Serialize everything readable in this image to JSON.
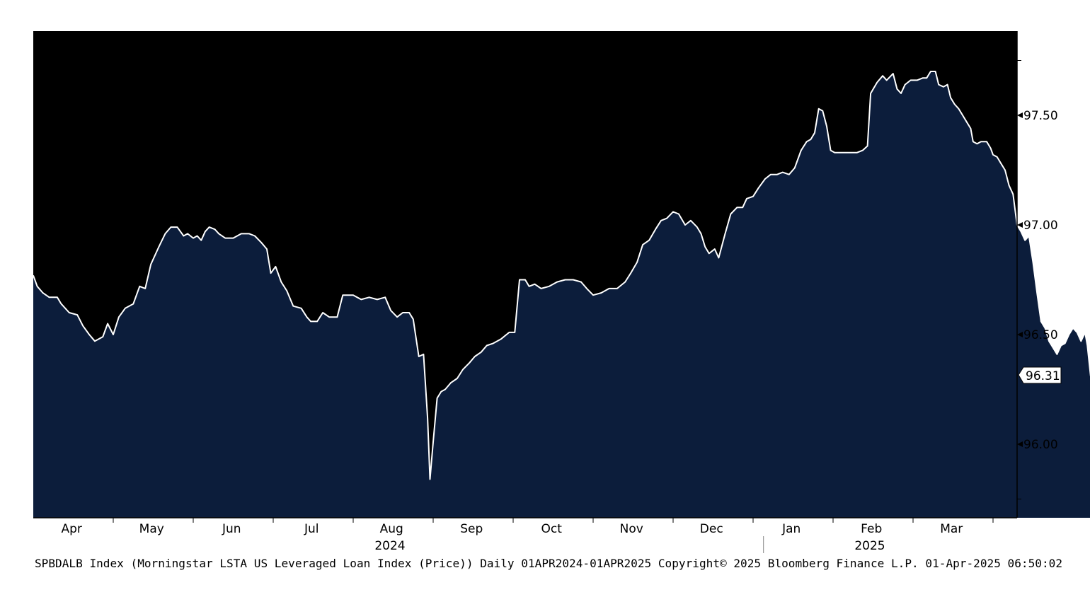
{
  "chart_data": {
    "type": "area",
    "title": "",
    "xlabel": "",
    "ylabel": "",
    "ylim": [
      95.73,
      97.9
    ],
    "grid": false,
    "legend": "none",
    "colors": {
      "fill": "#0c1d3b",
      "line": "#ffffff",
      "background": "#000000"
    },
    "y_ticks": [
      "96.00",
      "96.50",
      "97.00",
      "97.50"
    ],
    "y_tick_values": [
      96.0,
      96.5,
      97.0,
      97.5
    ],
    "x_month_labels": [
      "Apr",
      "May",
      "Jun",
      "Jul",
      "Aug",
      "Sep",
      "Oct",
      "Nov",
      "Dec",
      "Jan",
      "Feb",
      "Mar"
    ],
    "x_year_labels": [
      {
        "label": "2024",
        "under_month": 4.5
      },
      {
        "label": "2025",
        "under_month": 10.5
      }
    ],
    "last_value_label": "96.31",
    "footer": "SPBDALB Index (Morningstar LSTA US Leveraged Loan Index (Price))  Daily 01APR2024-01APR2025 Copyright© 2025 Bloomberg Finance L.P. 01-Apr-2025 06:50:02",
    "series": [
      {
        "x_unit": "months since 2024-04-01",
        "points": [
          [
            0.0,
            96.77
          ],
          [
            0.05,
            96.72
          ],
          [
            0.12,
            96.69
          ],
          [
            0.2,
            96.67
          ],
          [
            0.3,
            96.67
          ],
          [
            0.35,
            96.64
          ],
          [
            0.45,
            96.6
          ],
          [
            0.55,
            96.59
          ],
          [
            0.62,
            96.54
          ],
          [
            0.7,
            96.5
          ],
          [
            0.77,
            96.47
          ],
          [
            0.87,
            96.49
          ],
          [
            0.93,
            96.55
          ],
          [
            1.0,
            96.5
          ],
          [
            1.07,
            96.58
          ],
          [
            1.15,
            96.62
          ],
          [
            1.25,
            96.64
          ],
          [
            1.33,
            96.72
          ],
          [
            1.4,
            96.71
          ],
          [
            1.47,
            96.82
          ],
          [
            1.57,
            96.9
          ],
          [
            1.65,
            96.96
          ],
          [
            1.72,
            96.99
          ],
          [
            1.8,
            96.99
          ],
          [
            1.88,
            96.95
          ],
          [
            1.93,
            96.96
          ],
          [
            2.0,
            96.94
          ],
          [
            2.05,
            96.95
          ],
          [
            2.1,
            96.93
          ],
          [
            2.15,
            96.97
          ],
          [
            2.2,
            96.99
          ],
          [
            2.27,
            96.98
          ],
          [
            2.32,
            96.96
          ],
          [
            2.4,
            96.94
          ],
          [
            2.5,
            96.94
          ],
          [
            2.6,
            96.96
          ],
          [
            2.7,
            96.96
          ],
          [
            2.77,
            96.95
          ],
          [
            2.85,
            96.92
          ],
          [
            2.92,
            96.89
          ],
          [
            2.97,
            96.78
          ],
          [
            3.03,
            96.81
          ],
          [
            3.1,
            96.74
          ],
          [
            3.17,
            96.7
          ],
          [
            3.25,
            96.63
          ],
          [
            3.35,
            96.62
          ],
          [
            3.42,
            96.58
          ],
          [
            3.47,
            96.56
          ],
          [
            3.55,
            96.56
          ],
          [
            3.62,
            96.6
          ],
          [
            3.7,
            96.58
          ],
          [
            3.8,
            96.58
          ],
          [
            3.87,
            96.68
          ],
          [
            4.0,
            96.68
          ],
          [
            4.1,
            96.66
          ],
          [
            4.2,
            96.67
          ],
          [
            4.3,
            96.66
          ],
          [
            4.4,
            96.67
          ],
          [
            4.47,
            96.61
          ],
          [
            4.55,
            96.58
          ],
          [
            4.62,
            96.6
          ],
          [
            4.7,
            96.6
          ],
          [
            4.75,
            96.57
          ],
          [
            4.82,
            96.4
          ],
          [
            4.88,
            96.41
          ],
          [
            4.93,
            96.12
          ],
          [
            4.96,
            95.84
          ],
          [
            5.0,
            96.01
          ],
          [
            5.05,
            96.21
          ],
          [
            5.1,
            96.24
          ],
          [
            5.15,
            96.25
          ],
          [
            5.22,
            96.28
          ],
          [
            5.3,
            96.3
          ],
          [
            5.37,
            96.34
          ],
          [
            5.45,
            96.37
          ],
          [
            5.52,
            96.4
          ],
          [
            5.6,
            96.42
          ],
          [
            5.67,
            96.45
          ],
          [
            5.75,
            96.46
          ],
          [
            5.85,
            96.48
          ],
          [
            5.95,
            96.51
          ],
          [
            6.02,
            96.51
          ],
          [
            6.08,
            96.75
          ],
          [
            6.15,
            96.75
          ],
          [
            6.2,
            96.72
          ],
          [
            6.27,
            96.73
          ],
          [
            6.35,
            96.71
          ],
          [
            6.45,
            96.72
          ],
          [
            6.55,
            96.74
          ],
          [
            6.65,
            96.75
          ],
          [
            6.75,
            96.75
          ],
          [
            6.85,
            96.74
          ],
          [
            6.92,
            96.71
          ],
          [
            7.0,
            96.68
          ],
          [
            7.1,
            96.69
          ],
          [
            7.2,
            96.71
          ],
          [
            7.3,
            96.71
          ],
          [
            7.4,
            96.74
          ],
          [
            7.47,
            96.78
          ],
          [
            7.55,
            96.83
          ],
          [
            7.62,
            96.91
          ],
          [
            7.7,
            96.93
          ],
          [
            7.78,
            96.98
          ],
          [
            7.85,
            97.02
          ],
          [
            7.92,
            97.03
          ],
          [
            8.0,
            97.06
          ],
          [
            8.07,
            97.05
          ],
          [
            8.15,
            97.0
          ],
          [
            8.22,
            97.02
          ],
          [
            8.3,
            96.99
          ],
          [
            8.35,
            96.96
          ],
          [
            8.4,
            96.9
          ],
          [
            8.45,
            96.87
          ],
          [
            8.52,
            96.89
          ],
          [
            8.57,
            96.85
          ],
          [
            8.65,
            96.96
          ],
          [
            8.72,
            97.05
          ],
          [
            8.8,
            97.08
          ],
          [
            8.87,
            97.08
          ],
          [
            8.92,
            97.12
          ],
          [
            9.0,
            97.13
          ],
          [
            9.07,
            97.17
          ],
          [
            9.15,
            97.21
          ],
          [
            9.22,
            97.23
          ],
          [
            9.3,
            97.23
          ],
          [
            9.37,
            97.24
          ],
          [
            9.45,
            97.23
          ],
          [
            9.52,
            97.26
          ],
          [
            9.6,
            97.34
          ],
          [
            9.67,
            97.38
          ],
          [
            9.72,
            97.39
          ],
          [
            9.77,
            97.42
          ],
          [
            9.82,
            97.53
          ],
          [
            9.87,
            97.52
          ],
          [
            9.92,
            97.45
          ],
          [
            9.97,
            97.34
          ],
          [
            10.02,
            97.33
          ],
          [
            10.1,
            97.33
          ],
          [
            10.2,
            97.33
          ],
          [
            10.3,
            97.33
          ],
          [
            10.37,
            97.34
          ],
          [
            10.43,
            97.36
          ],
          [
            10.47,
            97.6
          ],
          [
            10.55,
            97.65
          ],
          [
            10.62,
            97.68
          ],
          [
            10.67,
            97.66
          ],
          [
            10.75,
            97.69
          ],
          [
            10.8,
            97.62
          ],
          [
            10.85,
            97.6
          ],
          [
            10.9,
            97.64
          ],
          [
            10.97,
            97.66
          ],
          [
            11.05,
            97.66
          ],
          [
            11.12,
            97.67
          ],
          [
            11.17,
            97.67
          ],
          [
            11.22,
            97.7
          ],
          [
            11.28,
            97.7
          ],
          [
            11.32,
            97.64
          ],
          [
            11.38,
            97.63
          ],
          [
            11.43,
            97.64
          ],
          [
            11.47,
            97.58
          ],
          [
            11.52,
            97.55
          ],
          [
            11.57,
            97.53
          ],
          [
            11.62,
            97.5
          ],
          [
            11.67,
            97.47
          ],
          [
            11.72,
            97.44
          ],
          [
            11.75,
            97.38
          ],
          [
            11.8,
            97.37
          ],
          [
            11.85,
            97.38
          ],
          [
            11.92,
            97.38
          ],
          [
            11.97,
            97.35
          ],
          [
            12.0,
            97.32
          ],
          [
            12.05,
            97.31
          ],
          [
            12.1,
            97.28
          ],
          [
            12.15,
            97.25
          ],
          [
            12.2,
            97.18
          ],
          [
            12.25,
            97.14
          ],
          [
            12.3,
            97.0
          ],
          [
            12.35,
            96.97
          ],
          [
            12.4,
            96.93
          ],
          [
            12.45,
            96.95
          ],
          [
            12.5,
            96.83
          ],
          [
            12.55,
            96.69
          ],
          [
            12.6,
            96.56
          ],
          [
            12.65,
            96.53
          ],
          [
            12.7,
            96.47
          ],
          [
            12.75,
            96.44
          ],
          [
            12.8,
            96.41
          ],
          [
            12.85,
            96.45
          ],
          [
            12.9,
            96.46
          ],
          [
            12.95,
            96.5
          ],
          [
            13.0,
            96.53
          ],
          [
            13.05,
            96.51
          ],
          [
            13.1,
            96.47
          ],
          [
            13.15,
            96.51
          ],
          [
            13.18,
            96.45
          ],
          [
            13.22,
            96.31
          ]
        ]
      }
    ]
  }
}
